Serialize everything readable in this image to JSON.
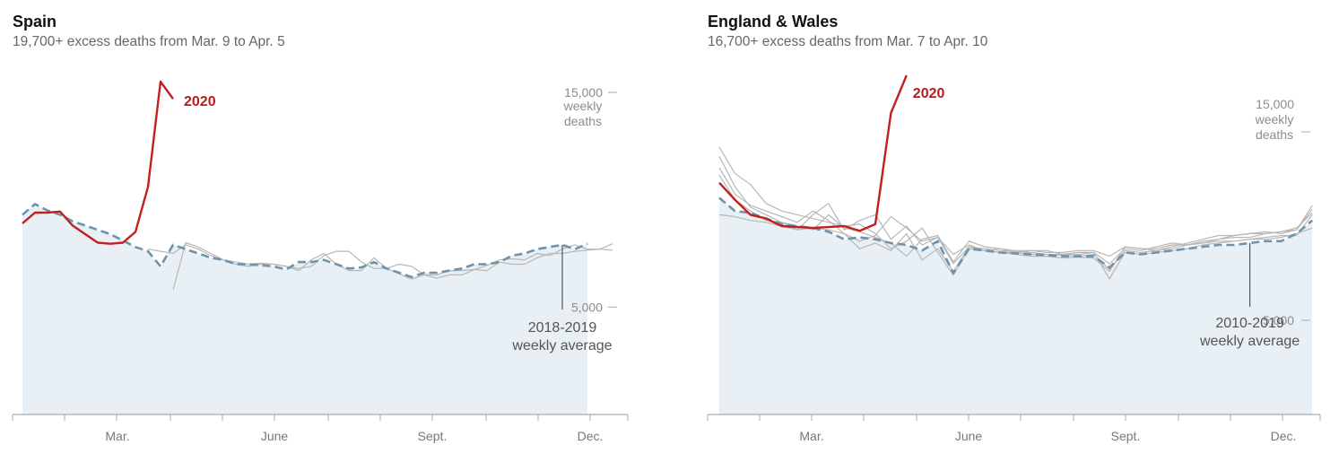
{
  "colors": {
    "current": "#c22020",
    "average": "#6f93ad",
    "past": "#b7b7b7",
    "area": "#e8f0f5"
  },
  "chart_data": [
    {
      "type": "line",
      "title": "Spain",
      "subtitle": "19,700+ excess deaths from Mar. 9 to Apr. 5",
      "x_tick_labels": [
        "Mar.",
        "June",
        "Sept.",
        "Dec."
      ],
      "y_ticks": [
        5000,
        15000
      ],
      "y_tick_labels": [
        "5,000",
        "15,000"
      ],
      "y_unit_lines": [
        "weekly",
        "deaths"
      ],
      "ylim": [
        0,
        16500
      ],
      "current_label": "2020",
      "average_label": [
        "2018-2019",
        "weekly average"
      ],
      "average_note_week": 43,
      "current": [
        8900,
        9400,
        9400,
        9450,
        8800,
        8400,
        8000,
        7950,
        8000,
        8500,
        10600,
        15500,
        14700
      ],
      "average": [
        9300,
        9800,
        9500,
        9300,
        9000,
        8800,
        8600,
        8400,
        8100,
        7800,
        7600,
        6900,
        7900,
        7700,
        7500,
        7300,
        7200,
        7000,
        7000,
        6950,
        6900,
        6750,
        7100,
        7100,
        7200,
        7000,
        6800,
        6850,
        7100,
        6800,
        6600,
        6400,
        6600,
        6600,
        6700,
        6800,
        7000,
        7000,
        7100,
        7400,
        7500,
        7700,
        7800,
        7900,
        7700,
        7950
      ],
      "past_years": [
        {
          "start": 12,
          "values": [
            5800,
            8000,
            7800,
            7500,
            7200,
            7100,
            7000,
            7050,
            7000,
            6900,
            6700,
            7200,
            7500,
            7000,
            6700,
            6700,
            7300,
            6800,
            6550,
            6300,
            6500,
            6500,
            6700,
            6700,
            6750,
            6950,
            7200,
            7250,
            7200,
            7500,
            7400,
            7700,
            7900,
            7700,
            7700,
            7950
          ]
        },
        {
          "start": 10,
          "values": [
            7700,
            7600,
            7500,
            7900,
            7700,
            7400,
            7200,
            7000,
            6900,
            7000,
            7000,
            6900,
            6800,
            6900,
            7400,
            7600,
            7600,
            7100,
            6800,
            6800,
            7000,
            6900,
            6500,
            6350,
            6500,
            6500,
            6750,
            6700,
            7100,
            7000,
            7000,
            7300,
            7500,
            7500,
            7600,
            7650,
            7700,
            7650
          ]
        }
      ]
    },
    {
      "type": "line",
      "title": "England & Wales",
      "subtitle": "16,700+ excess deaths from Mar. 7 to Apr. 10",
      "x_tick_labels": [
        "Mar.",
        "June",
        "Sept.",
        "Dec."
      ],
      "y_ticks": [
        5000,
        15000
      ],
      "y_tick_labels": [
        "5,000",
        "15,000"
      ],
      "y_unit_lines": [
        "weekly",
        "deaths"
      ],
      "ylim": [
        0,
        18200
      ],
      "current_label": "2020",
      "average_label": [
        "2010-2019",
        "weekly average"
      ],
      "average_note_week": 34,
      "current": [
        12300,
        11400,
        10600,
        10400,
        10000,
        9950,
        9900,
        9950,
        10000,
        9750,
        10100,
        16000,
        18000
      ],
      "average": [
        11500,
        10800,
        10700,
        10400,
        10100,
        10000,
        9900,
        9700,
        9300,
        9400,
        9300,
        9100,
        9000,
        8700,
        9200,
        7500,
        8800,
        8700,
        8600,
        8550,
        8500,
        8450,
        8400,
        8400,
        8400,
        7800,
        8600,
        8500,
        8600,
        8700,
        8800,
        8900,
        9000,
        9000,
        9100,
        9200,
        9200,
        9600,
        10300
      ],
      "past_years": [
        {
          "start": 0,
          "values": [
            14200,
            12800,
            12200,
            11200,
            10800,
            10600,
            10400,
            10200,
            10000,
            10100,
            9600,
            8800,
            9200,
            9900,
            8600,
            7400,
            8800,
            8700,
            8600,
            8500,
            8400,
            8400,
            8300,
            8350,
            8300,
            7600,
            8900,
            8800,
            8700,
            8900,
            9100,
            9300,
            9500,
            9500,
            9600,
            9700,
            9600,
            9800,
            10900
          ]
        },
        {
          "start": 0,
          "values": [
            13700,
            12100,
            11000,
            10600,
            10200,
            9800,
            10600,
            11200,
            9800,
            10300,
            10600,
            9300,
            10000,
            9000,
            9400,
            8500,
            9000,
            8700,
            8800,
            8600,
            8700,
            8700,
            8500,
            8600,
            8600,
            8000,
            8800,
            8700,
            8900,
            9100,
            9000,
            9200,
            9300,
            9500,
            9600,
            9600,
            9700,
            9800,
            11100
          ]
        },
        {
          "start": 0,
          "values": [
            13100,
            11700,
            11100,
            10800,
            10500,
            10200,
            10800,
            10300,
            9600,
            8800,
            9100,
            8700,
            9600,
            8200,
            8800,
            7600,
            8900,
            8800,
            8700,
            8650,
            8600,
            8500,
            8450,
            8400,
            8500,
            7700,
            8700,
            8600,
            8700,
            8800,
            9000,
            9100,
            9200,
            9200,
            9300,
            9400,
            9500,
            9500,
            10600
          ]
        },
        {
          "start": 0,
          "values": [
            12700,
            11400,
            10800,
            10300,
            10200,
            10000,
            9800,
            10600,
            9900,
            9700,
            9400,
            9100,
            8400,
            9300,
            9500,
            8100,
            9200,
            8900,
            8800,
            8700,
            8700,
            8600,
            8600,
            8700,
            8700,
            8400,
            8900,
            8800,
            8800,
            9000,
            9000,
            9100,
            9300,
            9400,
            9400,
            9600,
            9700,
            9900,
            10700
          ]
        },
        {
          "start": 0,
          "values": [
            10600,
            10500,
            10300,
            10200,
            10000,
            9800,
            9900,
            9800,
            9600,
            9200,
            9500,
            10500,
            9900,
            9200,
            9400,
            8000,
            8900,
            8700,
            8600,
            8600,
            8500,
            8500,
            8500,
            8500,
            8600,
            7200,
            8600,
            8500,
            8600,
            8700,
            8800,
            9000,
            9100,
            9200,
            9300,
            9300,
            9400,
            9600,
            9900
          ]
        }
      ]
    }
  ]
}
